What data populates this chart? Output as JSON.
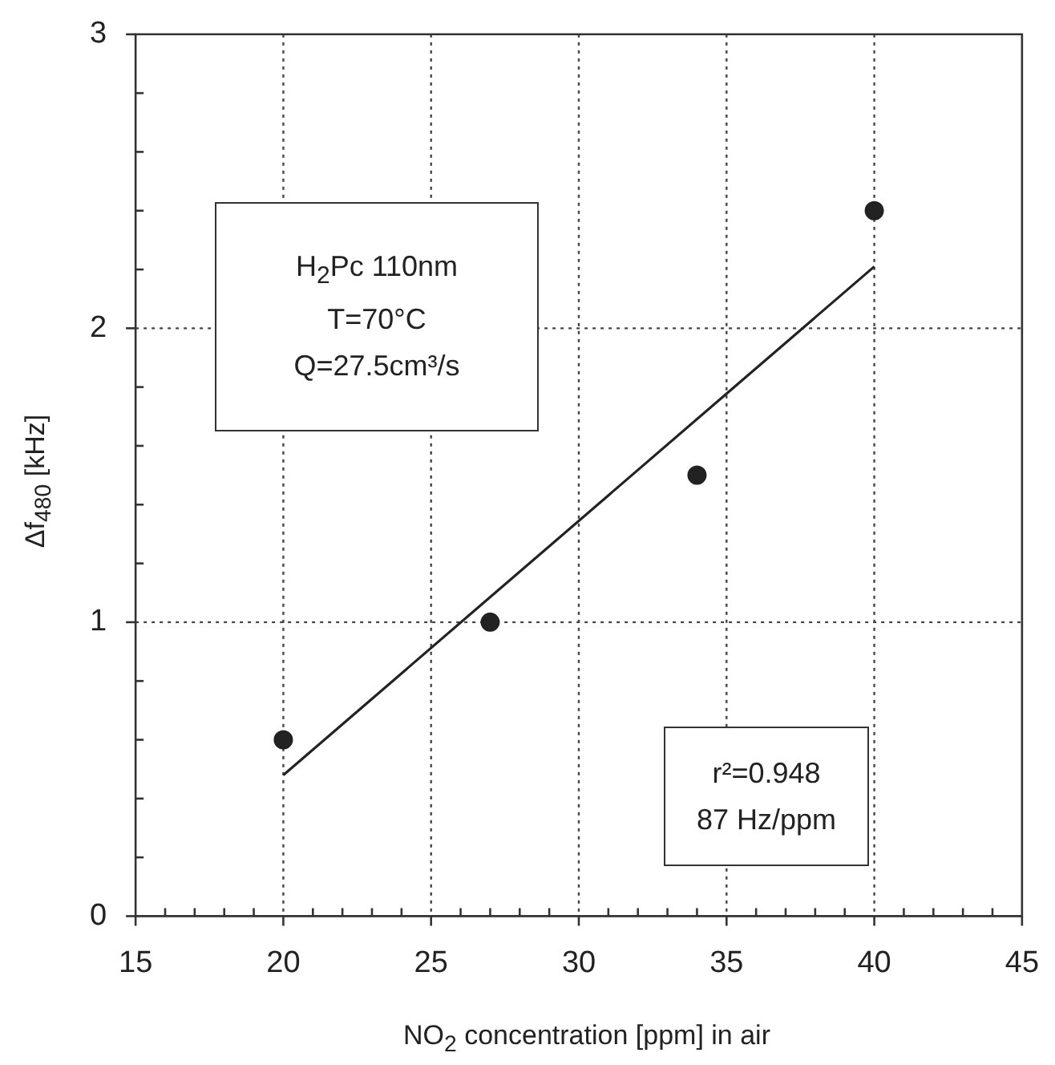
{
  "chart_data": {
    "type": "scatter",
    "xlabel": "NO$_{2}$ concentration [ppm] in air",
    "ylabel": "Δf$_{480}$ [kHz]",
    "annotations": [
      "H$_{2}$Pc  110nm",
      "T=70°C",
      "Q=27.5cm³/s",
      "r²=0.948",
      "87 Hz/ppm"
    ],
    "series": [
      {
        "color": "#222222",
        "x": [
          20,
          27,
          34,
          40
        ],
        "values": [
          0.6,
          1.0,
          1.5,
          2.4
        ]
      },
      {
        "type": "line",
        "color": "#222222",
        "x": [
          20,
          40
        ],
        "values": [
          0.48,
          2.21
        ],
        "marker": "none"
      }
    ],
    "xlim": [
      15,
      45
    ],
    "xticks": [
      15,
      {
        "value": 16,
        "label": null
      },
      {
        "value": 17,
        "label": null
      },
      {
        "value": 18,
        "label": null
      },
      {
        "value": 19,
        "label": null
      },
      20,
      {
        "value": 21,
        "label": null
      },
      {
        "value": 22,
        "label": null
      },
      {
        "value": 23,
        "label": null
      },
      {
        "value": 24,
        "label": null
      },
      25,
      {
        "value": 26,
        "label": null
      },
      {
        "value": 27,
        "label": null
      },
      {
        "value": 28,
        "label": null
      },
      {
        "value": 29,
        "label": null
      },
      30,
      {
        "value": 31,
        "label": null
      },
      {
        "value": 32,
        "label": null
      },
      {
        "value": 33,
        "label": null
      },
      {
        "value": 34,
        "label": null
      },
      35,
      {
        "value": 36,
        "label": null
      },
      {
        "value": 37,
        "label": null
      },
      {
        "value": 38,
        "label": null
      },
      {
        "value": 39,
        "label": null
      },
      40,
      {
        "value": 41,
        "label": null
      },
      {
        "value": 42,
        "label": null
      },
      {
        "value": 43,
        "label": null
      },
      {
        "value": 44,
        "label": null
      },
      45
    ],
    "ylim": [
      0,
      3
    ],
    "yticks": [
      0,
      {
        "value": 0.2,
        "label": null
      },
      {
        "value": 0.4,
        "label": null
      },
      {
        "value": 0.6,
        "label": null
      },
      {
        "value": 0.8,
        "label": null
      },
      1,
      {
        "value": 1.2,
        "label": null
      },
      {
        "value": 1.4,
        "label": null
      },
      {
        "value": 1.6,
        "label": null
      },
      {
        "value": 1.8,
        "label": null
      },
      2,
      {
        "value": 2.2,
        "label": null
      },
      {
        "value": 2.4,
        "label": null
      },
      {
        "value": 2.6,
        "label": null
      },
      {
        "value": 2.8,
        "label": null
      },
      3
    ],
    "grid": true,
    "marker": "circle",
    "legend": false
  }
}
